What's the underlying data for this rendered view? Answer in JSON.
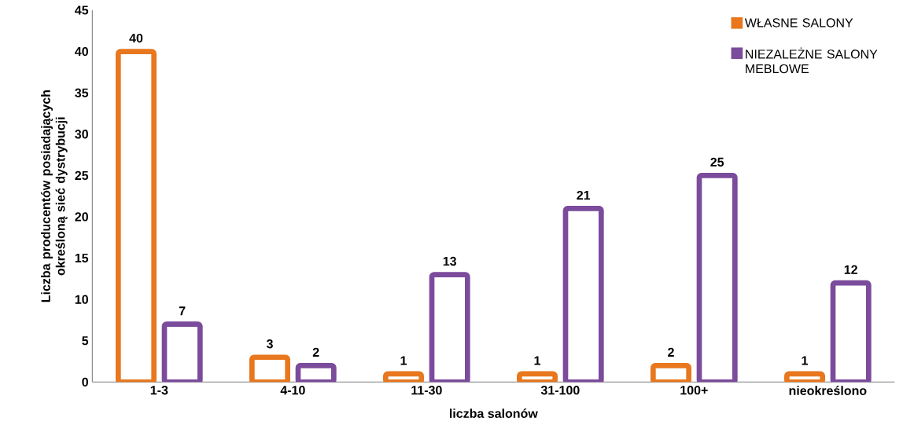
{
  "chart_data": {
    "type": "bar",
    "xlabel": "liczba salonów",
    "ylabel": "Liczba producentów posiadających określoną sieć dystrybucji",
    "categories": [
      "1-3",
      "4-10",
      "11-30",
      "31-100",
      "100+",
      "nieokreślono"
    ],
    "series": [
      {
        "name": "WŁASNE SALONY",
        "color": "#e8771e",
        "values": [
          40,
          3,
          1,
          1,
          2,
          1
        ]
      },
      {
        "name": "NIEZALEŻNE SALONY MEBLOWE",
        "color": "#7b4b9c",
        "values": [
          7,
          2,
          13,
          21,
          25,
          12
        ]
      }
    ],
    "ylim": [
      0,
      45
    ],
    "yticks": [
      0,
      5,
      10,
      15,
      20,
      25,
      30,
      35,
      40,
      45
    ],
    "data_labels": true,
    "legend": "top right",
    "grid": false
  }
}
